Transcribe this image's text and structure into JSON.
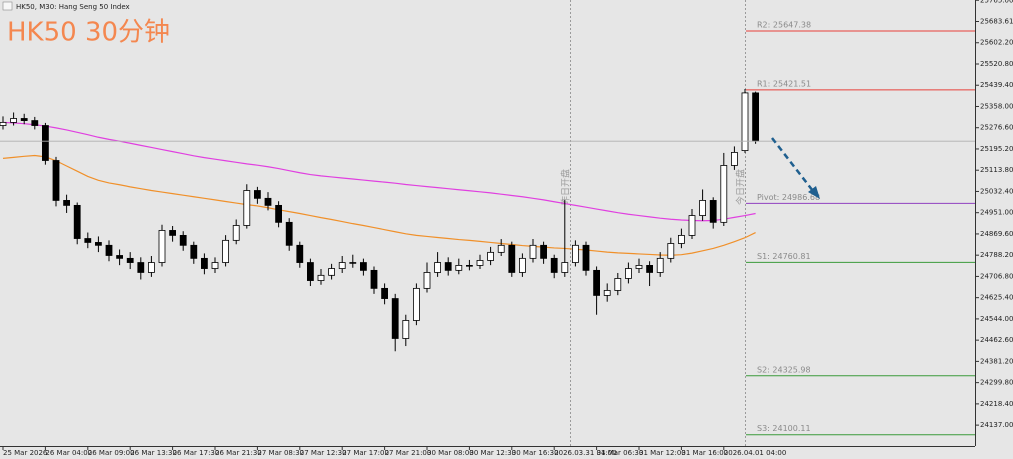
{
  "chart_data": {
    "type": "candlestick",
    "title": "HK50 30分钟",
    "subtitle": "HK50, M30: Hang Seng 50 Index",
    "categories": [
      "25 Mar 2026",
      null,
      null,
      null,
      "26 Mar 04:00",
      null,
      null,
      null,
      "26 Mar 09:00",
      null,
      null,
      null,
      "26 Mar 13:30",
      null,
      null,
      null,
      "26 Mar 17:30",
      null,
      null,
      null,
      "26 Mar 21:30",
      null,
      null,
      null,
      "27 Mar 08:30",
      null,
      null,
      null,
      "27 Mar 12:30",
      null,
      null,
      null,
      "27 Mar 17:00",
      null,
      null,
      null,
      "27 Mar 21:00",
      null,
      null,
      null,
      "30 Mar 08:00",
      null,
      null,
      null,
      "30 Mar 12:30",
      null,
      null,
      null,
      "30 Mar 16:30",
      null,
      null,
      null,
      "2026.03.31 04:00",
      null,
      null,
      null,
      "31 Mar 06:30",
      null,
      null,
      null,
      "31 Mar 12:00",
      null,
      null,
      null,
      "31 Mar 16:00",
      null,
      null,
      null,
      "2026.04.01 04:00",
      null,
      null,
      null
    ],
    "open": [
      25285,
      25297,
      25312,
      25304,
      25285,
      25151,
      24998,
      24979,
      24852,
      24837,
      24826,
      24787,
      24776,
      24760,
      24722,
      24760,
      24883,
      24864,
      24826,
      24776,
      24737,
      24760,
      24845,
      24902,
      25036,
      25006,
      24979,
      24914,
      24826,
      24760,
      24691,
      24711,
      24737,
      24760,
      24760,
      24730,
      24661,
      24622,
      24469,
      24538,
      24661,
      24722,
      24760,
      24730,
      24749,
      24749,
      24768,
      24799,
      24826,
      24722,
      24776,
      24826,
      24776,
      24722,
      24760,
      24826,
      24730,
      24634,
      24653,
      24699,
      24737,
      24749,
      24722,
      24776,
      24833,
      24864,
      24940,
      24998,
      24914,
      25132,
      25189,
      25410
    ],
    "high": [
      25320,
      25335,
      25330,
      25318,
      25295,
      25165,
      25020,
      24990,
      24875,
      24860,
      24845,
      24810,
      24800,
      24780,
      24785,
      24905,
      24900,
      24880,
      24840,
      24795,
      24780,
      24865,
      24925,
      25060,
      25050,
      25030,
      24995,
      24930,
      24840,
      24775,
      24735,
      24755,
      24785,
      24790,
      24775,
      24745,
      24680,
      24640,
      24560,
      24680,
      24760,
      24800,
      24780,
      24775,
      24770,
      24790,
      24820,
      24850,
      24840,
      24795,
      24850,
      24840,
      24790,
      25000,
      24845,
      24840,
      24745,
      24680,
      24720,
      24760,
      24775,
      24765,
      24800,
      24855,
      24890,
      24965,
      25040,
      25010,
      25180,
      25205,
      25425,
      25415
    ],
    "low": [
      25270,
      25285,
      25290,
      25270,
      25135,
      24975,
      24950,
      24830,
      24815,
      24800,
      24765,
      24750,
      24735,
      24695,
      24705,
      24745,
      24840,
      24805,
      24755,
      24715,
      24720,
      24745,
      24830,
      24890,
      24985,
      24960,
      24895,
      24805,
      24740,
      24670,
      24675,
      24695,
      24720,
      24740,
      24710,
      24640,
      24600,
      24420,
      24440,
      24520,
      24645,
      24705,
      24710,
      24715,
      24730,
      24735,
      24750,
      24785,
      24705,
      24705,
      24760,
      24755,
      24700,
      24705,
      24745,
      24710,
      24560,
      24610,
      24635,
      24680,
      24720,
      24670,
      24705,
      24760,
      24815,
      24850,
      24920,
      24890,
      24900,
      25115,
      25180,
      25215
    ],
    "close": [
      25297,
      25312,
      25304,
      25285,
      25151,
      24998,
      24979,
      24852,
      24837,
      24826,
      24787,
      24776,
      24760,
      24722,
      24760,
      24883,
      24864,
      24826,
      24776,
      24737,
      24760,
      24845,
      24902,
      25036,
      25006,
      24979,
      24914,
      24826,
      24760,
      24691,
      24711,
      24737,
      24760,
      24760,
      24730,
      24661,
      24622,
      24469,
      24538,
      24661,
      24722,
      24760,
      24730,
      24749,
      24749,
      24768,
      24799,
      24826,
      24722,
      24776,
      24826,
      24776,
      24722,
      24760,
      24826,
      24730,
      24634,
      24653,
      24699,
      24737,
      24749,
      24722,
      24776,
      24833,
      24864,
      24940,
      24998,
      24914,
      25132,
      25182,
      25410,
      25225
    ],
    "overlays": [
      {
        "color": "#e040e0",
        "values": [
          25297,
          25295,
          25292,
          25288,
          25283,
          25276,
          25268,
          25259,
          25250,
          25240,
          25232,
          25225,
          25217,
          25209,
          25201,
          25193,
          25185,
          25177,
          25169,
          25162,
          25156,
          25150,
          25144,
          25138,
          25133,
          25127,
          25120,
          25112,
          25104,
          25097,
          25092,
          25088,
          25084,
          25080,
          25076,
          25072,
          25068,
          25064,
          25059,
          25055,
          25051,
          25047,
          25043,
          25039,
          25035,
          25031,
          25027,
          25022,
          25017,
          25012,
          25006,
          25000,
          24993,
          24986,
          24979,
          24972,
          24965,
          24958,
          24951,
          24945,
          24940,
          24935,
          24930,
          24926,
          24923,
          24921,
          24920,
          24921,
          24926,
          24933,
          24940,
          24948
        ]
      },
      {
        "color": "#f0902a",
        "values": [
          25159,
          25163,
          25167,
          25170,
          25165,
          25150,
          25130,
          25110,
          25090,
          25075,
          25065,
          25058,
          25050,
          25043,
          25036,
          25030,
          25024,
          25018,
          25012,
          25006,
          25000,
          24994,
          24988,
          24982,
          24977,
          24970,
          24962,
          24955,
          24948,
          24940,
          24932,
          24925,
          24917,
          24909,
          24902,
          24894,
          24886,
          24878,
          24870,
          24864,
          24860,
          24856,
          24852,
          24848,
          24845,
          24841,
          24837,
          24833,
          24829,
          24825,
          24822,
          24819,
          24816,
          24814,
          24811,
          24808,
          24804,
          24800,
          24797,
          24795,
          24793,
          24791,
          24789,
          24788,
          24790,
          24796,
          24805,
          24814,
          24826,
          24840,
          24855,
          24875
        ]
      }
    ],
    "levels": [
      {
        "label": "R2: 25647.38",
        "value": 25647.38,
        "color": "#e8403a"
      },
      {
        "label": "R1: 25421.51",
        "value": 25421.51,
        "color": "#e8403a"
      },
      {
        "label": "Pivot: 24986.68",
        "value": 24986.68,
        "color": "#9040c0"
      },
      {
        "label": "S1: 24760.81",
        "value": 24760.81,
        "color": "#3a9a3a"
      },
      {
        "label": "S2: 24325.98",
        "value": 24325.98,
        "color": "#3a9a3a"
      },
      {
        "label": "S3: 24100.11",
        "value": 24100.11,
        "color": "#3a9a3a"
      }
    ],
    "annotations": [
      "昨日开盘",
      "今日开盘"
    ],
    "ylim": [
      24057,
      25766
    ],
    "yticks": [
      {
        "value": 25765,
        "label": "25765.00"
      },
      {
        "value": 25683.61,
        "label": "25683.61"
      },
      {
        "value": 25602.2,
        "label": "25602.20"
      },
      {
        "value": 25520.8,
        "label": "25520.80"
      },
      {
        "value": 25439.4,
        "label": "25439.40"
      },
      {
        "value": 25358,
        "label": "25358.00"
      },
      {
        "value": 25276.6,
        "label": "25276.60"
      },
      {
        "value": 25195.2,
        "label": "25195.20"
      },
      {
        "value": 25113.8,
        "label": "25113.80"
      },
      {
        "value": 25032.4,
        "label": "25032.40"
      },
      {
        "value": 24951,
        "label": "24951.00"
      },
      {
        "value": 24869.6,
        "label": "24869.60"
      },
      {
        "value": 24788.2,
        "label": "24788.20"
      },
      {
        "value": 24706.8,
        "label": "24706.80"
      },
      {
        "value": 24625.4,
        "label": "24625.40"
      },
      {
        "value": 24544,
        "label": "24544.00"
      },
      {
        "value": 24462.6,
        "label": "24462.60"
      },
      {
        "value": 24381.2,
        "label": "24381.20"
      },
      {
        "value": 24299.8,
        "label": "24299.80"
      },
      {
        "value": 24218.4,
        "label": "24218.40"
      },
      {
        "value": 24137,
        "label": "24137.00"
      }
    ]
  }
}
